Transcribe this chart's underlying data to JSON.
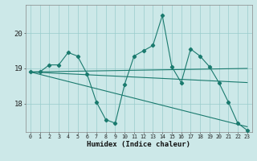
{
  "xlabel": "Humidex (Indice chaleur)",
  "bg_color": "#cce8e8",
  "grid_color": "#99cccc",
  "line_color": "#1a7a6e",
  "x_values": [
    0,
    1,
    2,
    3,
    4,
    5,
    6,
    7,
    8,
    9,
    10,
    11,
    12,
    13,
    14,
    15,
    16,
    17,
    18,
    19,
    20,
    21,
    22,
    23
  ],
  "series1": [
    18.9,
    18.9,
    19.1,
    19.1,
    19.45,
    19.35,
    18.85,
    18.05,
    17.55,
    17.45,
    18.55,
    19.35,
    19.5,
    19.65,
    20.5,
    19.05,
    18.6,
    19.55,
    19.35,
    19.05,
    18.6,
    18.05,
    17.45,
    17.25
  ],
  "trend_lines": [
    {
      "x_start": 0,
      "y_start": 18.9,
      "x_end": 23,
      "y_end": 19.0
    },
    {
      "x_start": 0,
      "y_start": 18.9,
      "x_end": 23,
      "y_end": 18.6
    },
    {
      "x_start": 0,
      "y_start": 18.9,
      "x_end": 23,
      "y_end": 17.35
    }
  ],
  "ylim": [
    17.2,
    20.8
  ],
  "yticks": [
    18,
    19,
    20
  ],
  "xticks": [
    0,
    1,
    2,
    3,
    4,
    5,
    6,
    7,
    8,
    9,
    10,
    11,
    12,
    13,
    14,
    15,
    16,
    17,
    18,
    19,
    20,
    21,
    22,
    23
  ]
}
